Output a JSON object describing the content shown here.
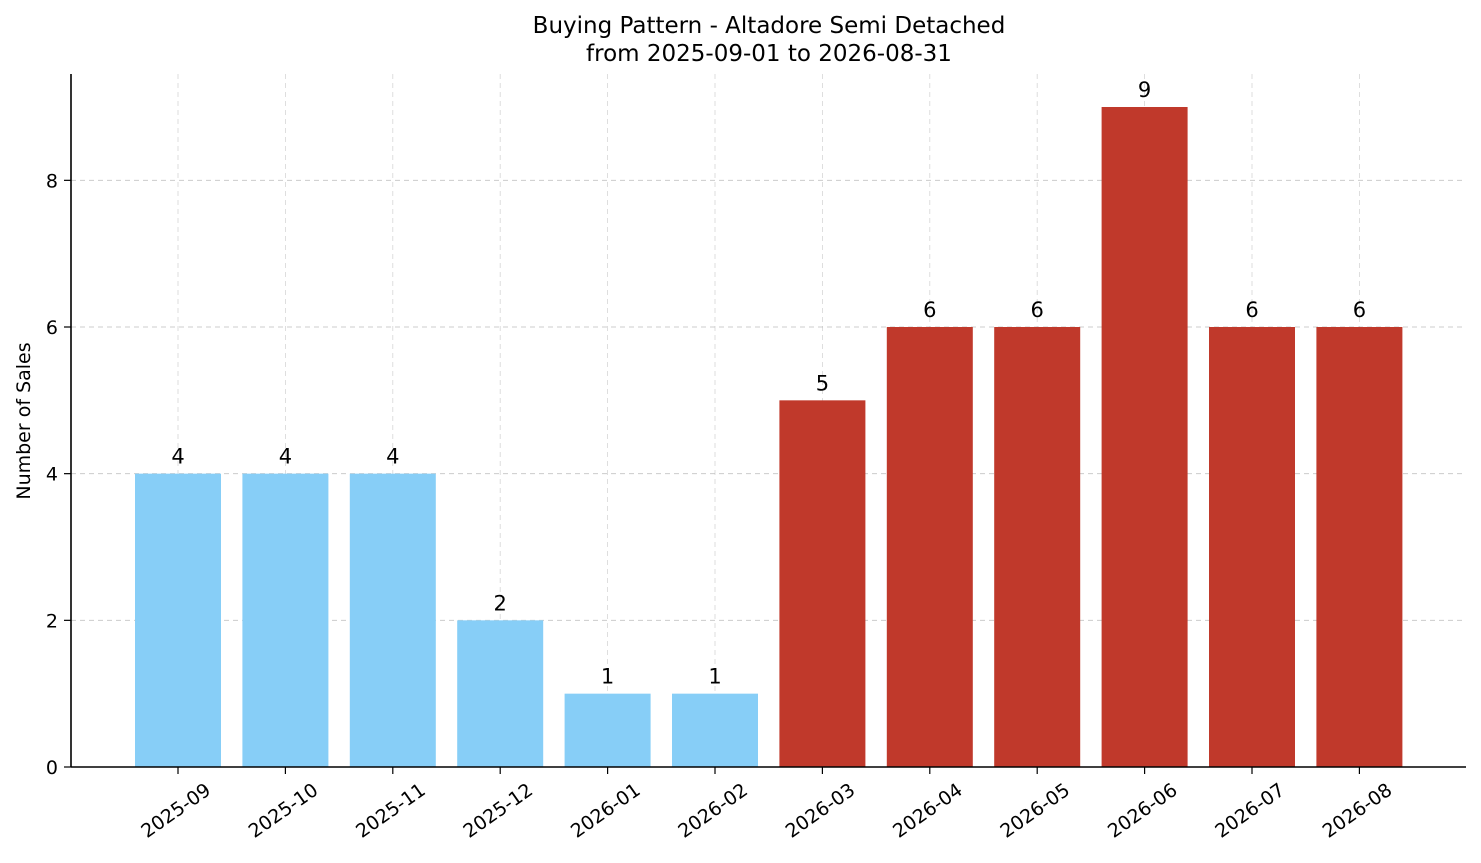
{
  "chart_data": {
    "type": "bar",
    "title": "Buying Pattern - Altadore Semi Detached",
    "subtitle": "from 2025-09-01 to 2026-08-31",
    "xlabel": "",
    "ylabel": "Number of Sales",
    "categories": [
      "2025-09",
      "2025-10",
      "2025-11",
      "2025-12",
      "2026-01",
      "2026-02",
      "2026-03",
      "2026-04",
      "2026-05",
      "2026-06",
      "2026-07",
      "2026-08"
    ],
    "values": [
      4,
      4,
      4,
      2,
      1,
      1,
      5,
      6,
      6,
      9,
      6,
      6
    ],
    "bar_colors": [
      "#87CEF7",
      "#87CEF7",
      "#87CEF7",
      "#87CEF7",
      "#87CEF7",
      "#87CEF7",
      "#C0392B",
      "#C0392B",
      "#C0392B",
      "#C0392B",
      "#C0392B",
      "#C0392B"
    ],
    "yticks": [
      0,
      2,
      4,
      6,
      8
    ],
    "ylim": [
      0,
      9.45
    ],
    "grid": true,
    "legend": "none"
  }
}
